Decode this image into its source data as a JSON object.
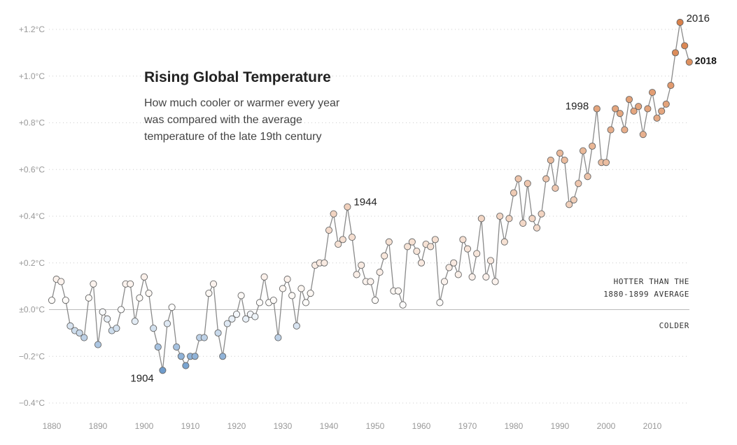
{
  "chart_data": {
    "type": "scatter",
    "title": "Rising Global Temperature",
    "subtitle_lines": [
      "How much cooler or warmer every year",
      "was compared with the average",
      "temperature of the late 19th century"
    ],
    "xlabel": "",
    "ylabel": "",
    "xlim": [
      1879,
      2020
    ],
    "ylim": [
      -0.42,
      1.3
    ],
    "x_ticks": [
      1880,
      1890,
      1900,
      1910,
      1920,
      1930,
      1940,
      1950,
      1960,
      1970,
      1980,
      1990,
      2000,
      2010
    ],
    "y_ticks": [
      {
        "value": 1.2,
        "label": "+1.2°C"
      },
      {
        "value": 1.0,
        "label": "+1.0°C"
      },
      {
        "value": 0.8,
        "label": "+0.8°C"
      },
      {
        "value": 0.6,
        "label": "+0.6°C"
      },
      {
        "value": 0.4,
        "label": "+0.4°C"
      },
      {
        "value": 0.2,
        "label": "+0.2°C"
      },
      {
        "value": 0.0,
        "label": "±0.0°C"
      },
      {
        "value": -0.2,
        "label": "−0.2°C"
      },
      {
        "value": -0.4,
        "label": "−0.4°C"
      }
    ],
    "grid": true,
    "x": [
      1880,
      1881,
      1882,
      1883,
      1884,
      1885,
      1886,
      1887,
      1888,
      1889,
      1890,
      1891,
      1892,
      1893,
      1894,
      1895,
      1896,
      1897,
      1898,
      1899,
      1900,
      1901,
      1902,
      1903,
      1904,
      1905,
      1906,
      1907,
      1908,
      1909,
      1910,
      1911,
      1912,
      1913,
      1914,
      1915,
      1916,
      1917,
      1918,
      1919,
      1920,
      1921,
      1922,
      1923,
      1924,
      1925,
      1926,
      1927,
      1928,
      1929,
      1930,
      1931,
      1932,
      1933,
      1934,
      1935,
      1936,
      1937,
      1938,
      1939,
      1940,
      1941,
      1942,
      1943,
      1944,
      1945,
      1946,
      1947,
      1948,
      1949,
      1950,
      1951,
      1952,
      1953,
      1954,
      1955,
      1956,
      1957,
      1958,
      1959,
      1960,
      1961,
      1962,
      1963,
      1964,
      1965,
      1966,
      1967,
      1968,
      1969,
      1970,
      1971,
      1972,
      1973,
      1974,
      1975,
      1976,
      1977,
      1978,
      1979,
      1980,
      1981,
      1982,
      1983,
      1984,
      1985,
      1986,
      1987,
      1988,
      1989,
      1990,
      1991,
      1992,
      1993,
      1994,
      1995,
      1996,
      1997,
      1998,
      1999,
      2000,
      2001,
      2002,
      2003,
      2004,
      2005,
      2006,
      2007,
      2008,
      2009,
      2010,
      2011,
      2012,
      2013,
      2014,
      2015,
      2016,
      2017,
      2018
    ],
    "values": [
      0.04,
      0.13,
      0.12,
      0.04,
      -0.07,
      -0.09,
      -0.1,
      -0.12,
      0.05,
      0.11,
      -0.15,
      -0.01,
      -0.04,
      -0.09,
      -0.08,
      0.0,
      0.11,
      0.11,
      -0.05,
      0.05,
      0.14,
      0.07,
      -0.08,
      -0.16,
      -0.26,
      -0.06,
      0.01,
      -0.16,
      -0.2,
      -0.24,
      -0.2,
      -0.2,
      -0.12,
      -0.12,
      0.07,
      0.11,
      -0.1,
      -0.2,
      -0.06,
      -0.04,
      -0.02,
      0.06,
      -0.04,
      -0.02,
      -0.03,
      0.03,
      0.14,
      0.03,
      0.04,
      -0.12,
      0.09,
      0.13,
      0.06,
      -0.07,
      0.09,
      0.03,
      0.07,
      0.19,
      0.2,
      0.2,
      0.34,
      0.41,
      0.28,
      0.3,
      0.44,
      0.31,
      0.15,
      0.19,
      0.12,
      0.12,
      0.04,
      0.16,
      0.23,
      0.29,
      0.08,
      0.08,
      0.02,
      0.27,
      0.29,
      0.25,
      0.2,
      0.28,
      0.27,
      0.3,
      0.03,
      0.12,
      0.18,
      0.2,
      0.15,
      0.3,
      0.26,
      0.14,
      0.24,
      0.39,
      0.14,
      0.21,
      0.12,
      0.4,
      0.29,
      0.39,
      0.5,
      0.56,
      0.37,
      0.54,
      0.39,
      0.35,
      0.41,
      0.56,
      0.64,
      0.52,
      0.67,
      0.64,
      0.45,
      0.47,
      0.54,
      0.68,
      0.57,
      0.7,
      0.86,
      0.63,
      0.63,
      0.77,
      0.86,
      0.84,
      0.77,
      0.9,
      0.85,
      0.87,
      0.75,
      0.86,
      0.93,
      0.82,
      0.85,
      0.88,
      0.96,
      1.1,
      1.23,
      1.13,
      1.06
    ],
    "annotations": [
      {
        "label": "1904",
        "year": 1904,
        "value": -0.26,
        "bold": false
      },
      {
        "label": "1944",
        "year": 1944,
        "value": 0.44,
        "bold": false
      },
      {
        "label": "1998",
        "year": 1998,
        "value": 0.86,
        "bold": false
      },
      {
        "label": "2016",
        "year": 2016,
        "value": 1.23,
        "bold": false
      },
      {
        "label": "2018",
        "year": 2018,
        "value": 1.06,
        "bold": true
      }
    ],
    "side_labels": {
      "hotter_line1": "HOTTER THAN THE",
      "hotter_line2": "1880-1899 AVERAGE",
      "colder": "COLDER"
    },
    "colors": {
      "cold_max": "#6f9ccc",
      "neutral": "#ffffff",
      "warm_max": "#d9814a",
      "line": "#8a8a8a"
    }
  }
}
